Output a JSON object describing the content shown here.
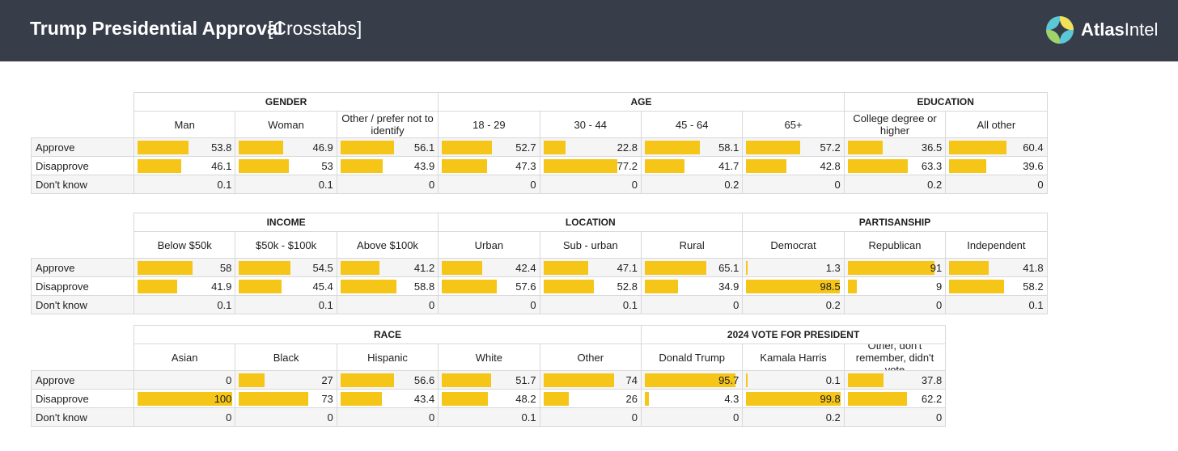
{
  "header": {
    "title": "Trump Presidential Approval",
    "subtitle": "[Crosstabs]",
    "brand_bold": "Atlas",
    "brand_light": "Intel",
    "bar_color": "#383d4a"
  },
  "row_labels": [
    "Approve",
    "Disapprove",
    "Don't know"
  ],
  "accent_color": "#f5c518",
  "tables": [
    {
      "groups": [
        {
          "label": "GENDER",
          "columns": [
            "Man",
            "Woman",
            "Other / prefer not to identify"
          ]
        },
        {
          "label": "AGE",
          "columns": [
            "18 - 29",
            "30 - 44",
            "45 - 64",
            "65+"
          ]
        },
        {
          "label": "EDUCATION",
          "columns": [
            "College degree or higher",
            "All other"
          ]
        }
      ],
      "rows": [
        [
          "53.8",
          "46.9",
          "56.1",
          "52.7",
          "22.8",
          "58.1",
          "57.2",
          "36.5",
          "60.4"
        ],
        [
          "46.1",
          "53",
          "43.9",
          "47.3",
          "77.2",
          "41.7",
          "42.8",
          "63.3",
          "39.6"
        ],
        [
          "0.1",
          "0.1",
          "0",
          "0",
          "0",
          "0.2",
          "0",
          "0.2",
          "0"
        ]
      ]
    },
    {
      "groups": [
        {
          "label": "INCOME",
          "columns": [
            "Below $50k",
            "$50k - $100k",
            "Above $100k"
          ]
        },
        {
          "label": "LOCATION",
          "columns": [
            "Urban",
            "Sub - urban",
            "Rural"
          ]
        },
        {
          "label": "PARTISANSHIP",
          "columns": [
            "Democrat",
            "Republican",
            "Independent"
          ]
        }
      ],
      "rows": [
        [
          "58",
          "54.5",
          "41.2",
          "42.4",
          "47.1",
          "65.1",
          "1.3",
          "91",
          "41.8"
        ],
        [
          "41.9",
          "45.4",
          "58.8",
          "57.6",
          "52.8",
          "34.9",
          "98.5",
          "9",
          "58.2"
        ],
        [
          "0.1",
          "0.1",
          "0",
          "0",
          "0.1",
          "0",
          "0.2",
          "0",
          "0.1"
        ]
      ]
    },
    {
      "groups": [
        {
          "label": "RACE",
          "columns": [
            "Asian",
            "Black",
            "Hispanic",
            "White",
            "Other"
          ]
        },
        {
          "label": "2024 VOTE FOR PRESIDENT",
          "columns": [
            "Donald Trump",
            "Kamala Harris",
            "Other, don't remember, didn't vote"
          ]
        }
      ],
      "rows": [
        [
          "0",
          "27",
          "56.6",
          "51.7",
          "74",
          "95.7",
          "0.1",
          "37.8"
        ],
        [
          "100",
          "73",
          "43.4",
          "48.2",
          "26",
          "4.3",
          "99.8",
          "62.2"
        ],
        [
          "0",
          "0",
          "0",
          "0.1",
          "0",
          "0",
          "0.2",
          "0"
        ]
      ]
    }
  ]
}
